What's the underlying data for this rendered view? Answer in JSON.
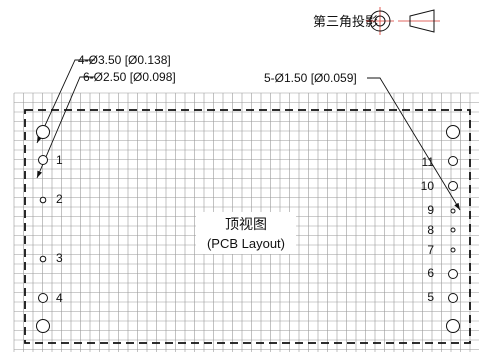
{
  "projection": {
    "label": "第三角投影",
    "symbol_icon": "third-angle-projection-icon"
  },
  "callouts": [
    {
      "id": "hole-4-3p50",
      "text": "4-Ø3.50 [Ø0.138]"
    },
    {
      "id": "hole-6-2p50",
      "text": "6-Ø2.50 [Ø0.098]"
    },
    {
      "id": "hole-5-1p50",
      "text": "5-Ø1.50 [Ø0.059]"
    }
  ],
  "view": {
    "title": "顶视图",
    "subtitle": "(PCB Layout)"
  },
  "pin_labels": {
    "left": [
      "1",
      "2",
      "3",
      "4"
    ],
    "right": [
      "11",
      "10",
      "9",
      "8",
      "7",
      "6",
      "5"
    ]
  },
  "colors": {
    "grid": "#9a9a9a",
    "lines": "#111111",
    "projection_centerline": "#d9342b"
  }
}
